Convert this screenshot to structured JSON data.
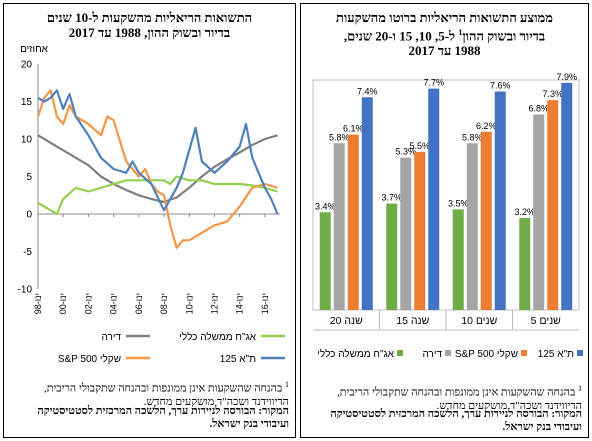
{
  "colors": {
    "green": "#92d050",
    "gray": "#7f7f7f",
    "orange": "#f79646",
    "blue": "#4f81bd",
    "blue_bar": "#4472c4",
    "green_bar": "#70ad47",
    "gray_bar": "#a5a5a5",
    "orange_bar": "#ed7d31"
  },
  "left_panel": {
    "title_line1": "התשואות הריאליות מהשקעות ל-10 שנים",
    "title_line2": "בדיור ובשוק ההון, 1988 עד 2017",
    "footnote_mark": "1",
    "footnote_text": "בהנחה שהשקעות אינן ממונפות ובהנחה שתקבולי הריבית, הדיווידנד ושכה\"ד מושקעים מחדש.",
    "source_text": "המקור: הבורסה לניירות ערך, הלשכה המרכזית לסטטיסטיקה ועיבודי בנק ישראל."
  },
  "right_panel": {
    "title_line1": "ממוצע התשואות הריאליות ברוטו מהשקעות",
    "title_line2a": "בדיור ובשוק ההון",
    "title_sup": "1",
    "title_line2b": " ל-5, 10, 15 ו-20 שנים,",
    "title_line3": "1988 עד 2017",
    "footnote_mark": "1",
    "footnote_text": "בהנחה שהשקעות אינן ממונפות ובהנחה שתקבולי הריבית, הדיווידנד ושכה\"ד מושקעים מחדש.",
    "source_text": "המקור: הבורסה לניירות ערך, הלשכה המרכזית לסטטיסטיקה ועיבודי בנק ישראל."
  },
  "chart_data": [
    {
      "type": "line",
      "ylabel": "אחוזים",
      "ylim": [
        -10,
        20
      ],
      "yticks": [
        -10,
        -5,
        0,
        5,
        10,
        15,
        20
      ],
      "xlim": [
        1998,
        2017.2
      ],
      "xtick_labels": [
        "ינו-98",
        "ינו-00",
        "ינו-02",
        "ינו-04",
        "ינו-06",
        "ינו-08",
        "ינו-10",
        "ינו-12",
        "ינו-14",
        "ינו-16"
      ],
      "legend_position": "bottom",
      "series": [
        {
          "name": "דירה",
          "color": "#7f7f7f",
          "x": [
            1998,
            1999,
            2000,
            2001,
            2002,
            2003,
            2004,
            2005,
            2006,
            2007,
            2008,
            2009,
            2010,
            2011,
            2012,
            2013,
            2014,
            2015,
            2016,
            2017
          ],
          "y": [
            10.5,
            9.5,
            8.5,
            7.5,
            6.5,
            5,
            4,
            3.2,
            2.5,
            2,
            1.6,
            2.2,
            3.5,
            5,
            6.3,
            7.3,
            8.2,
            9.2,
            10,
            10.5
          ]
        },
        {
          "name": "אג\"ח ממשלה כללי",
          "color": "#92d050",
          "x": [
            1998,
            1998.5,
            1999,
            1999.5,
            2000,
            2001,
            2002,
            2003,
            2004,
            2005,
            2006,
            2007,
            2008,
            2008.5,
            2009,
            2010,
            2011,
            2012,
            2013,
            2014,
            2015,
            2016,
            2017
          ],
          "y": [
            1.5,
            1,
            0.5,
            0,
            2,
            3.5,
            3,
            3.5,
            4,
            4.5,
            4.5,
            4.5,
            4.5,
            4,
            5,
            4.5,
            4.5,
            4,
            4,
            4,
            3.8,
            3.5,
            3
          ]
        },
        {
          "name": "S&P 500 שקלי",
          "color": "#f79646",
          "x": [
            1998,
            1998.5,
            1999,
            1999.5,
            2000,
            2000.5,
            2001,
            2002,
            2003,
            2003.5,
            2004,
            2005,
            2006,
            2006.5,
            2007,
            2007.5,
            2008,
            2008.5,
            2009,
            2009.5,
            2010,
            2011,
            2012,
            2013,
            2014,
            2015,
            2016,
            2017
          ],
          "y": [
            13,
            15.5,
            16.5,
            13,
            12,
            14.5,
            13,
            12,
            10.5,
            13,
            12.5,
            7,
            5,
            6,
            4,
            3,
            2.5,
            -1.5,
            -4.5,
            -3.5,
            -3.5,
            -2.5,
            -1.5,
            -1,
            1,
            3.5,
            4,
            3.5
          ]
        },
        {
          "name": "ת\"א 125",
          "color": "#4f81bd",
          "x": [
            1998,
            1998.5,
            1999,
            1999.5,
            2000,
            2000.5,
            2001,
            2002,
            2003,
            2004,
            2005,
            2005.5,
            2006,
            2007,
            2008,
            2009,
            2009.5,
            2010,
            2010.5,
            2011,
            2012,
            2013,
            2014,
            2014.5,
            2015,
            2016,
            2016.5,
            2017
          ],
          "y": [
            15.5,
            15,
            15.5,
            16.5,
            14,
            16,
            13,
            10.5,
            7.5,
            6,
            5.5,
            7,
            5.5,
            4,
            0.5,
            3.5,
            5.5,
            8.5,
            11.5,
            7,
            5.5,
            7,
            9,
            12,
            7.5,
            3.5,
            2,
            0
          ]
        }
      ]
    },
    {
      "type": "bar",
      "categories": [
        "20 שנה",
        "15 שנה",
        "10 שנים",
        "5 שנים"
      ],
      "ylim": [
        0,
        8
      ],
      "legend_position": "bottom",
      "series": [
        {
          "name": "אג\"ח ממשלה כללי",
          "color": "#70ad47",
          "values": [
            3.4,
            3.7,
            3.5,
            3.2
          ],
          "labels": [
            "3.4%",
            "3.7%",
            "3.5%",
            "3.2%"
          ]
        },
        {
          "name": "דירה",
          "color": "#a5a5a5",
          "values": [
            5.8,
            5.3,
            5.8,
            6.8
          ],
          "labels": [
            "5.8%",
            "5.3%",
            "5.8%",
            "6.8%"
          ]
        },
        {
          "name": "S&P 500 שקלי",
          "color": "#ed7d31",
          "values": [
            6.1,
            5.5,
            6.2,
            7.3
          ],
          "labels": [
            "6.1%",
            "5.5%",
            "6.2%",
            "7.3%"
          ]
        },
        {
          "name": "ת\"א 125",
          "color": "#4472c4",
          "values": [
            7.4,
            7.7,
            7.6,
            7.9
          ],
          "labels": [
            "7.4%",
            "7.7%",
            "7.6%",
            "7.9%"
          ]
        }
      ]
    }
  ]
}
